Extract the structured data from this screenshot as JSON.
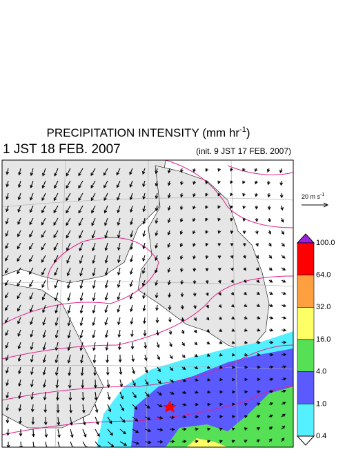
{
  "title": {
    "text": "PRECIPITATION INTENSITY (mm hr",
    "superscript": "-1",
    "suffix": ")"
  },
  "valid_time": "1 JST 18 FEB. 2007",
  "init_time": "(init. 9 JST 17 FEB. 2007)",
  "vector_scale": {
    "text": "20 m s",
    "superscript": "-1"
  },
  "colorbar": {
    "levels": [
      {
        "value": 100,
        "label": "100.0"
      },
      {
        "value": 64,
        "label": "64.0"
      },
      {
        "value": 32,
        "label": "32.0"
      },
      {
        "value": 16,
        "label": "16.0"
      },
      {
        "value": 4,
        "label": "4.0"
      },
      {
        "value": 1,
        "label": "1.0"
      },
      {
        "value": 0.4,
        "label": "0.4"
      }
    ],
    "colors": [
      "#ff0000",
      "#ffa040",
      "#ffff66",
      "#55e055",
      "#5a5aff",
      "#55f0ff"
    ],
    "over_color": "#a020e0",
    "under_color": "#ffffff"
  }
}
